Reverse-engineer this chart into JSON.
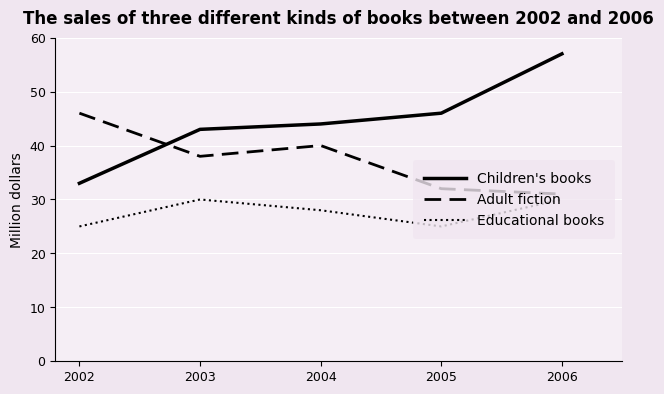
{
  "title": "The sales of three different kinds of books between 2002 and 2006",
  "xlabel": "",
  "ylabel": "Million dollars",
  "years": [
    2002,
    2003,
    2004,
    2005,
    2006
  ],
  "children_books": [
    33,
    43,
    44,
    46,
    57
  ],
  "adult_fiction": [
    46,
    38,
    40,
    32,
    31
  ],
  "educational_books": [
    25,
    30,
    28,
    25,
    30
  ],
  "ylim": [
    0,
    60
  ],
  "yticks": [
    0,
    10,
    20,
    30,
    40,
    50,
    60
  ],
  "bg_color": "#f0e6f0",
  "plot_bg_color": "#f5eef5",
  "children_color": "#000000",
  "adult_color": "#000000",
  "edu_color": "#000000",
  "title_fontsize": 12,
  "axis_label_fontsize": 10,
  "legend_fontsize": 10
}
